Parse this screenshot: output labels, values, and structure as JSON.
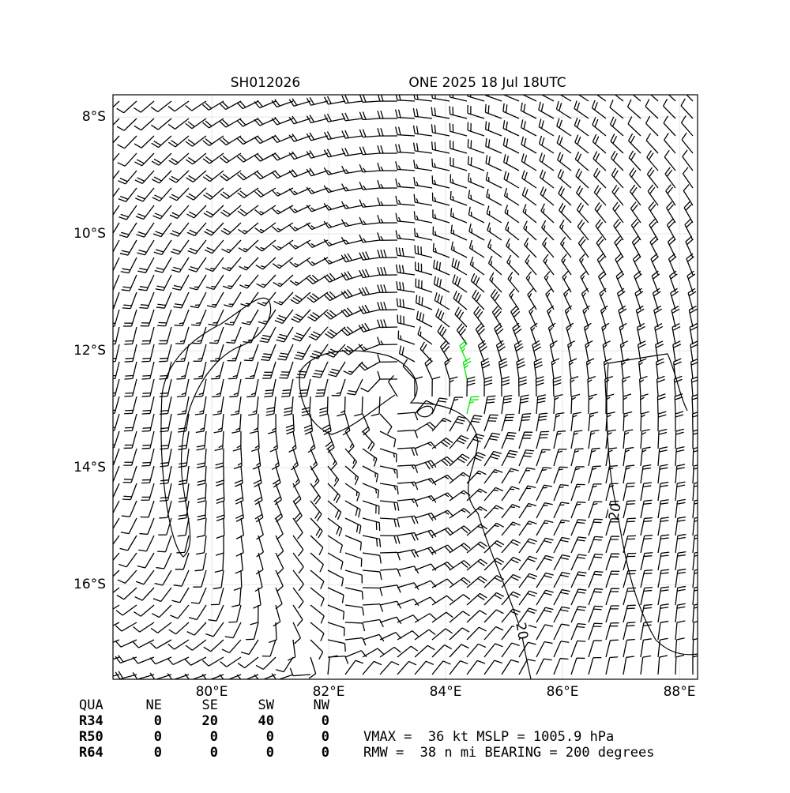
{
  "title_left": "SH012026",
  "title_right": "ONE 2025 18 Jul 18UTC",
  "map": {
    "xlim": [
      78.31,
      88.31
    ],
    "ylim": [
      -17.62,
      -7.62
    ],
    "xticks": [
      {
        "value": 80,
        "label": "80°E"
      },
      {
        "value": 82,
        "label": "82°E"
      },
      {
        "value": 84,
        "label": "84°E"
      },
      {
        "value": 86,
        "label": "86°E"
      },
      {
        "value": 88,
        "label": "88°E"
      }
    ],
    "yticks": [
      {
        "value": -8,
        "label": "8°S"
      },
      {
        "value": -10,
        "label": "10°S"
      },
      {
        "value": -12,
        "label": "12°S"
      },
      {
        "value": -14,
        "label": "14°S"
      },
      {
        "value": -16,
        "label": "16°S"
      }
    ],
    "grid": true,
    "contour_labels": [
      "20",
      "20"
    ]
  },
  "radii_table": {
    "header": [
      "QUA",
      "NE",
      "SE",
      "SW",
      "NW"
    ],
    "rows": [
      [
        "R34",
        0,
        20,
        40,
        0
      ],
      [
        "R50",
        0,
        0,
        0,
        0
      ],
      [
        "R64",
        0,
        0,
        0,
        0
      ]
    ]
  },
  "info": [
    "VMAX =  36 kt MSLP = 1005.9 hPa",
    "RMW =  38 n mi BEARING = 200 degrees"
  ]
}
